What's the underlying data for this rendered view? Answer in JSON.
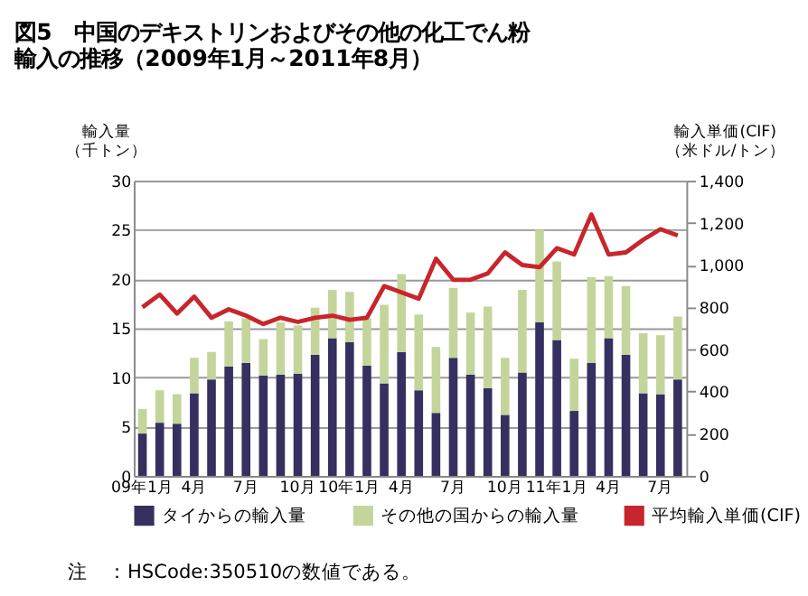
{
  "chart_data": {
    "type": "bar",
    "stacked": true,
    "title": "図5　中国のデキストリンおよびその他の化工でん粉輸入の推移（2009年1月～2011年8月）",
    "ylabel": "輸入量（千トン）",
    "y2label": "輸入単価(CIF)（米ドル/トン）",
    "categories": [
      "09年1月",
      null,
      null,
      "4月",
      null,
      null,
      "7月",
      null,
      null,
      "10月",
      null,
      null,
      "10年1月",
      null,
      null,
      "4月",
      null,
      null,
      "7月",
      null,
      null,
      "10月",
      null,
      null,
      "11年1月",
      null,
      null,
      "4月",
      null,
      null,
      "7月",
      null
    ],
    "series": [
      {
        "name": "タイからの輸入量",
        "color": "#35305f",
        "values": [
          4.3,
          5.4,
          5.3,
          8.4,
          9.8,
          11.1,
          11.5,
          10.2,
          10.3,
          10.4,
          12.3,
          14.0,
          13.6,
          11.2,
          9.4,
          12.6,
          8.7,
          6.4,
          12.0,
          10.3,
          8.9,
          6.2,
          10.5,
          15.6,
          13.8,
          6.6,
          11.5,
          14.0,
          12.3,
          8.4,
          8.3,
          9.8
        ]
      },
      {
        "name": "その他の国からの輸入量",
        "color": "#c4d59b",
        "values": [
          2.5,
          3.3,
          3.0,
          3.6,
          2.8,
          4.6,
          4.5,
          3.7,
          5.3,
          4.9,
          4.8,
          4.9,
          5.1,
          4.8,
          8.0,
          7.9,
          7.7,
          6.7,
          7.1,
          6.3,
          8.3,
          5.8,
          8.4,
          9.4,
          8.0,
          5.3,
          8.7,
          6.3,
          7.0,
          6.1,
          6.0,
          6.4
        ]
      },
      {
        "name": "平均輸入単価(CIF)",
        "color": "#c8252c",
        "type": "line",
        "axis": "y2",
        "values": [
          800,
          860,
          770,
          850,
          750,
          790,
          760,
          720,
          750,
          730,
          750,
          760,
          740,
          750,
          900,
          870,
          840,
          1030,
          930,
          930,
          960,
          1060,
          1000,
          990,
          1080,
          1050,
          1240,
          1050,
          1060,
          1120,
          1170,
          1140
        ]
      }
    ],
    "ylim": [
      0,
      30
    ],
    "yticks": [
      0,
      5,
      10,
      15,
      20,
      25,
      30
    ],
    "y2lim": [
      0,
      1400
    ],
    "y2ticks": [
      0,
      200,
      400,
      600,
      800,
      {
        "value": 1000,
        "label": "1,000"
      },
      {
        "value": 1200,
        "label": "1,200"
      },
      {
        "value": 1400,
        "label": "1,400"
      }
    ],
    "grid": "y",
    "legend": "bottom",
    "annotations": [
      "注　：HSCode:350510の数値である。"
    ]
  }
}
